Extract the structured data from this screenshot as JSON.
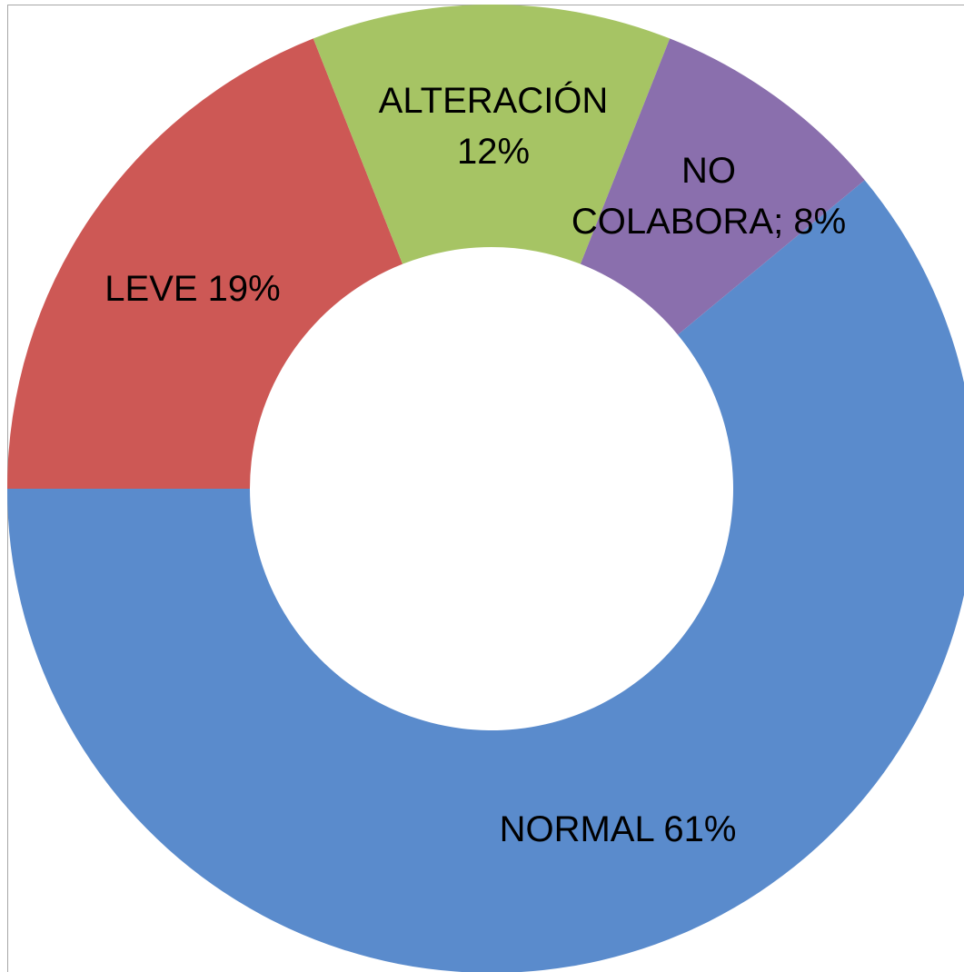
{
  "chart_data": {
    "type": "pie",
    "categories": [
      "NORMAL",
      "LEVE",
      "ALTERACIÓN",
      "NO COLABORA"
    ],
    "values": [
      61,
      19,
      12,
      8
    ],
    "value_labels": [
      "NORMAL 61%",
      "LEVE 19%",
      "ALTERACIÓN\n12%",
      "NO\nCOLABORA; 8%"
    ],
    "colors": [
      "#5a8bcc",
      "#cd5855",
      "#a6c464",
      "#8a6fad"
    ],
    "donut": true
  }
}
